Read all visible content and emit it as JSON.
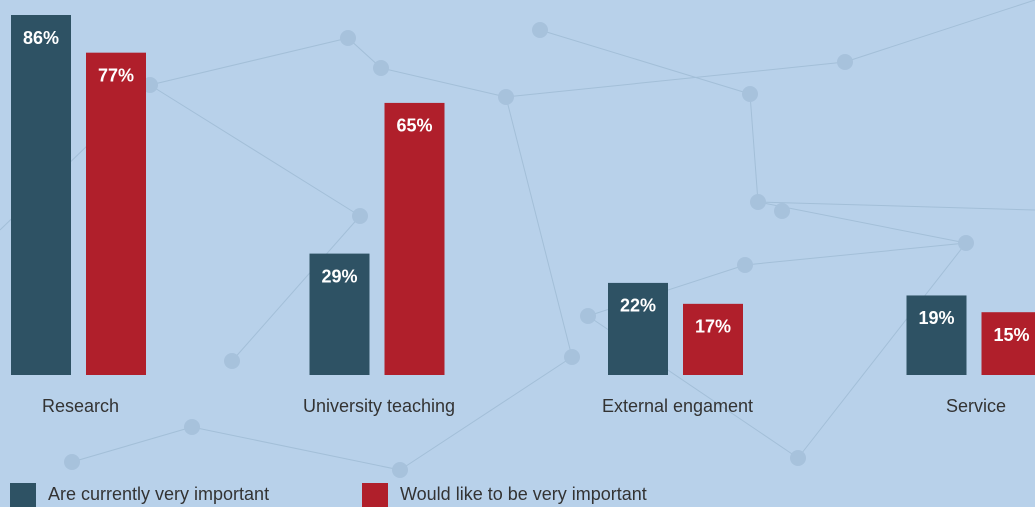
{
  "chart_data": {
    "type": "bar",
    "categories": [
      "Research",
      "University teaching",
      "External engament",
      "Service"
    ],
    "series": [
      {
        "name": "Are currently very important",
        "color": "#2e5264",
        "values": [
          86,
          29,
          22,
          19
        ],
        "value_labels": [
          "86%",
          "29%",
          "22%",
          "19%"
        ]
      },
      {
        "name": "Would like to be very important",
        "color": "#b01f2b",
        "values": [
          77,
          65,
          17,
          15
        ],
        "value_labels": [
          "77%",
          "65%",
          "17%",
          "15%"
        ]
      }
    ]
  }
}
